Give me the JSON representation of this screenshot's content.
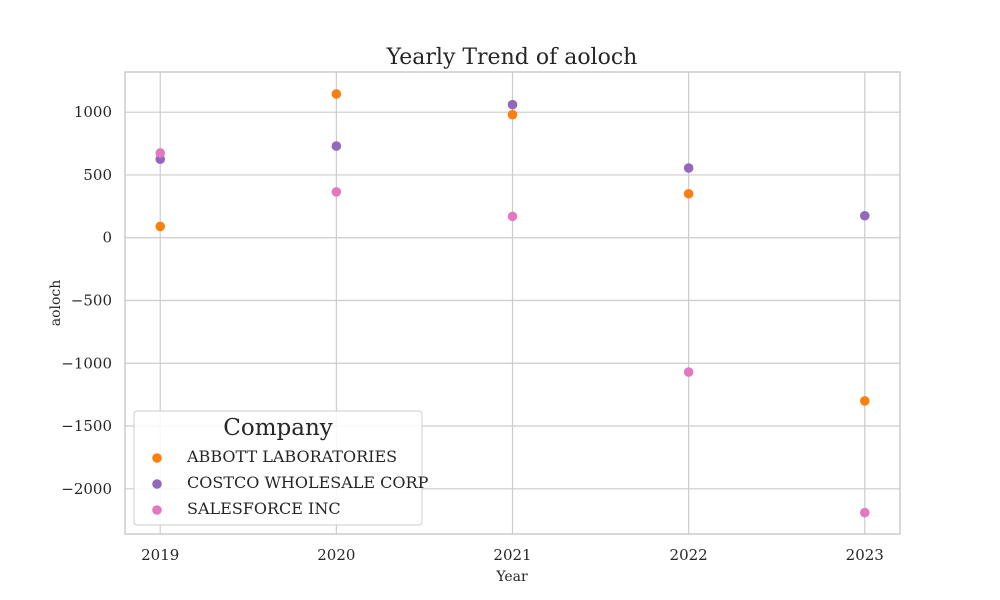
{
  "chart_data": {
    "type": "scatter",
    "title": "Yearly Trend of aoloch",
    "xlabel": "Year",
    "ylabel": "aoloch",
    "x": [
      2019,
      2020,
      2021,
      2022,
      2023
    ],
    "x_tick_labels": [
      "2019",
      "2020",
      "2021",
      "2022",
      "2023"
    ],
    "y_ticks": [
      1000,
      500,
      0,
      -500,
      -1000,
      -1500,
      -2000
    ],
    "y_tick_labels": [
      "1000",
      "500",
      "0",
      "−500",
      "−1000",
      "−1500",
      "−2000"
    ],
    "xlim": [
      2018.8,
      2023.2
    ],
    "ylim": [
      -2360,
      1320
    ],
    "grid": true,
    "legend": {
      "title": "Company",
      "placement": "lower-left"
    },
    "series": [
      {
        "name": "ABBOTT LABORATORIES",
        "color": "#ff7f0e",
        "values": [
          90,
          1145,
          980,
          350,
          -1300
        ]
      },
      {
        "name": "COSTCO WHOLESALE CORP",
        "color": "#9467bd",
        "values": [
          625,
          730,
          1060,
          555,
          175
        ]
      },
      {
        "name": "SALESFORCE INC",
        "color": "#e377c2",
        "values": [
          675,
          365,
          170,
          -1070,
          -2190
        ]
      }
    ]
  }
}
